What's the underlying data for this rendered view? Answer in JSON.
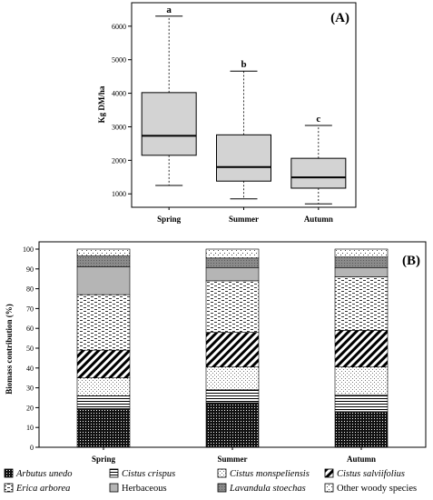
{
  "chart_data": [
    {
      "type": "box",
      "panel_label": "(A)",
      "title": "",
      "xlabel": "",
      "ylabel": "Kg DM/ha",
      "ylim": [
        600,
        6700
      ],
      "yticks": [
        1000,
        2000,
        3000,
        4000,
        5000,
        6000
      ],
      "categories": [
        "Spring",
        "Summer",
        "Autumn"
      ],
      "boxes": [
        {
          "category": "Spring",
          "min": 1250,
          "q1": 2150,
          "median": 2730,
          "q3": 4020,
          "max": 6300,
          "letter": "a"
        },
        {
          "category": "Summer",
          "min": 850,
          "q1": 1380,
          "median": 1800,
          "q3": 2760,
          "max": 4660,
          "letter": "b"
        },
        {
          "category": "Autumn",
          "min": 700,
          "q1": 1170,
          "median": 1490,
          "q3": 2060,
          "max": 3040,
          "letter": "c"
        }
      ],
      "grid": false,
      "box_color": "#d3d3d3"
    },
    {
      "type": "bar",
      "stacked": true,
      "panel_label": "(B)",
      "title": "",
      "xlabel": "",
      "ylabel": "Biomass contribution (%)",
      "ylim": [
        0,
        100
      ],
      "yticks": [
        0,
        10,
        20,
        30,
        40,
        50,
        60,
        70,
        80,
        90,
        100
      ],
      "categories": [
        "Spring",
        "Summer",
        "Autumn"
      ],
      "series": [
        {
          "name": "Arbutus unedo",
          "italic": true,
          "pattern": "solid-dots",
          "values": [
            19.5,
            22.5,
            18.0
          ]
        },
        {
          "name": "Cistus crispus",
          "italic": true,
          "pattern": "hlines",
          "values": [
            6.5,
            6.5,
            8.5
          ]
        },
        {
          "name": "Cistus monspeliensis",
          "italic": true,
          "pattern": "dots",
          "values": [
            9.0,
            11.5,
            14.0
          ]
        },
        {
          "name": "Cistus salviifolius",
          "italic": true,
          "pattern": "diag",
          "values": [
            14.0,
            17.5,
            18.5
          ]
        },
        {
          "name": "Erica arborea",
          "italic": true,
          "pattern": "dashes",
          "values": [
            28.0,
            26.0,
            27.0
          ]
        },
        {
          "name": "Herbaceous",
          "italic": false,
          "pattern": "gray",
          "values": [
            14.0,
            6.5,
            4.5
          ]
        },
        {
          "name": "Lavandula stoechas",
          "italic": true,
          "pattern": "darkgray",
          "values": [
            5.5,
            5.0,
            5.5
          ]
        },
        {
          "name": "Other woody species",
          "italic": false,
          "pattern": "sparse",
          "values": [
            3.5,
            4.5,
            4.0
          ]
        }
      ],
      "grid": false,
      "legend": "bottom"
    }
  ]
}
